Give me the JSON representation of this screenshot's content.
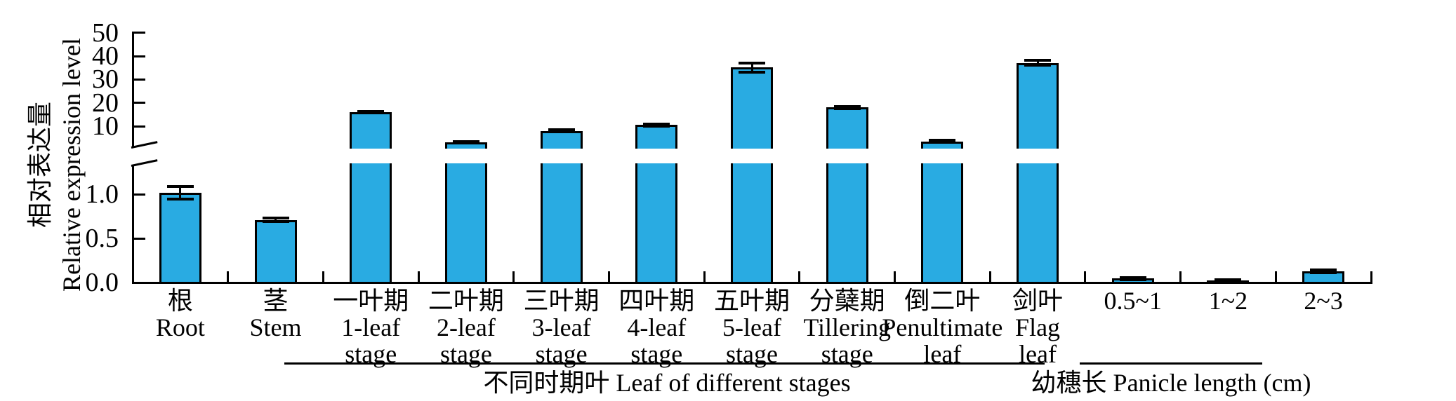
{
  "chart_data": {
    "type": "bar",
    "title": "",
    "ylabel_zh": "相对表达量",
    "ylabel_en": "Relative expression level",
    "bar_color": "#29abe2",
    "axis_color": "#000000",
    "upper_axis": {
      "tick_labels": [
        "10",
        "20",
        "30",
        "40",
        "50"
      ],
      "tick_values": [
        10,
        20,
        30,
        40,
        50
      ],
      "range": [
        1.6,
        50
      ]
    },
    "lower_axis": {
      "tick_labels": [
        "0.0",
        "0.5",
        "1.0"
      ],
      "tick_values": [
        0,
        0.5,
        1.0
      ],
      "range": [
        0,
        1.32
      ]
    },
    "categories": [
      {
        "lines": [
          "根",
          "Root"
        ],
        "value": 1.02,
        "error": 0.07
      },
      {
        "lines": [
          "茎",
          "Stem"
        ],
        "value": 0.71,
        "error": 0.02
      },
      {
        "lines": [
          "一叶期",
          "1-leaf",
          "stage"
        ],
        "value": 16.0,
        "error": 0.4
      },
      {
        "lines": [
          "二叶期",
          "2-leaf",
          "stage"
        ],
        "value": 3.2,
        "error": 0.3
      },
      {
        "lines": [
          "三叶期",
          "3-leaf",
          "stage"
        ],
        "value": 8.0,
        "error": 0.4
      },
      {
        "lines": [
          "四叶期",
          "4-leaf",
          "stage"
        ],
        "value": 10.5,
        "error": 0.4
      },
      {
        "lines": [
          "五叶期",
          "5-leaf",
          "stage"
        ],
        "value": 35.2,
        "error": 2.0
      },
      {
        "lines": [
          "分蘖期",
          "Tillering",
          "stage"
        ],
        "value": 18.0,
        "error": 0.5
      },
      {
        "lines": [
          "倒二叶",
          "Penultimate",
          "leaf"
        ],
        "value": 3.5,
        "error": 0.4
      },
      {
        "lines": [
          "剑叶",
          "Flag",
          "leaf"
        ],
        "value": 37.2,
        "error": 1.2
      },
      {
        "lines": [
          "0.5~1"
        ],
        "value": 0.045,
        "error": 0.012
      },
      {
        "lines": [
          "1~2"
        ],
        "value": 0.024,
        "error": 0.008
      },
      {
        "lines": [
          "2~3"
        ],
        "value": 0.13,
        "error": 0.015
      }
    ],
    "groups": [
      {
        "label": "不同时期叶 Leaf of different stages",
        "start_index": 2,
        "end_index": 9
      },
      {
        "label": "幼穗长 Panicle length (cm)",
        "start_index": 10,
        "end_index": 12
      }
    ]
  }
}
